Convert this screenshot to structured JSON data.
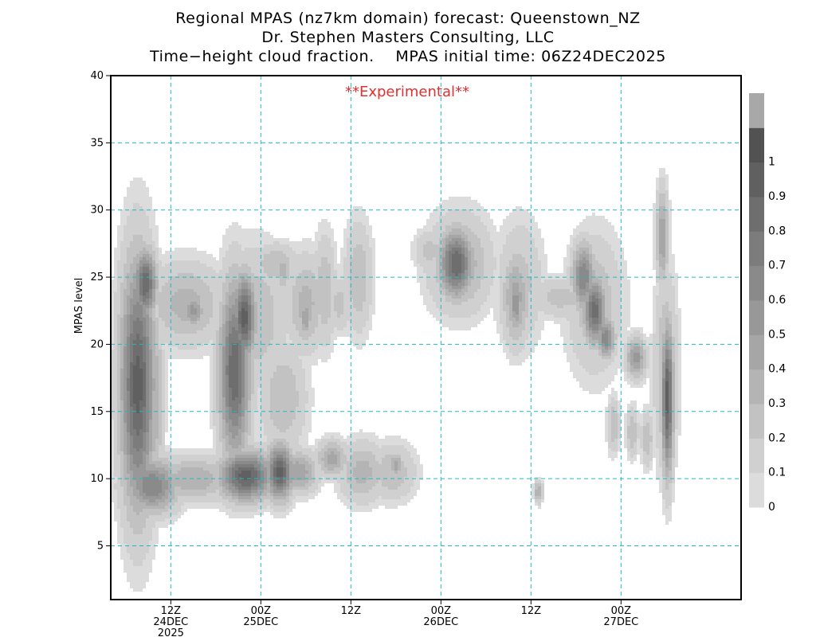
{
  "title_lines": [
    "Regional MPAS (nz7km domain) forecast: Queenstown_NZ",
    "Dr. Stephen Masters Consulting, LLC",
    "Time−height cloud fraction.    MPAS initial time: 06Z24DEC2025"
  ],
  "annotation": "**Experimental**",
  "colors": {
    "grid": "#20b8c8",
    "annotation": "#e03030",
    "frame": "#000000"
  },
  "chart_data": {
    "type": "heatmap",
    "ylabel": "MPAS level",
    "ylim": [
      1,
      40
    ],
    "yticks": [
      5,
      10,
      15,
      20,
      25,
      30,
      35,
      40
    ],
    "xlim_hours_from_init": [
      -2,
      82
    ],
    "xticks": [
      {
        "hours": 6,
        "label": "12Z",
        "sub": [
          "24DEC",
          "2025"
        ]
      },
      {
        "hours": 18,
        "label": "00Z",
        "sub": [
          "25DEC"
        ]
      },
      {
        "hours": 30,
        "label": "12Z",
        "sub": []
      },
      {
        "hours": 42,
        "label": "00Z",
        "sub": [
          "26DEC"
        ]
      },
      {
        "hours": 54,
        "label": "12Z",
        "sub": []
      },
      {
        "hours": 66,
        "label": "00Z",
        "sub": [
          "27DEC"
        ]
      }
    ],
    "colorbar": {
      "labels": [
        "0",
        "0.1",
        "0.2",
        "0.3",
        "0.4",
        "0.5",
        "0.6",
        "0.7",
        "0.8",
        "0.9",
        "1"
      ],
      "colors": [
        "#dcdcdc",
        "#d0d0d0",
        "#c2c2c2",
        "#b4b4b4",
        "#a6a6a6",
        "#989898",
        "#8a8a8a",
        "#7c7c7c",
        "#6e6e6e",
        "#606060",
        "#525252",
        "#a8a8a8"
      ]
    },
    "cloud_features": [
      {
        "name": "left-column",
        "t": 1.6,
        "z": 17.0,
        "dt": 2.3,
        "dz": 9.0,
        "max": 0.95
      },
      {
        "name": "left-column-top",
        "t": 2.6,
        "z": 24.5,
        "dt": 1.5,
        "dz": 2.5,
        "max": 0.9
      },
      {
        "name": "left-spike",
        "t": 4.0,
        "z": 16.0,
        "dt": 1.0,
        "dz": 6.0,
        "max": 0.4
      },
      {
        "name": "left-low",
        "t": 3.5,
        "z": 9.5,
        "dt": 3.5,
        "dz": 2.0,
        "max": 0.7
      },
      {
        "name": "upper-band",
        "t": 8.0,
        "z": 23.0,
        "dt": 5.0,
        "dz": 3.0,
        "max": 0.35
      },
      {
        "name": "upper-band-core",
        "t": 9.0,
        "z": 22.5,
        "dt": 1.5,
        "dz": 1.2,
        "max": 0.55
      },
      {
        "name": "low-band",
        "t": 9.0,
        "z": 10.0,
        "dt": 5.0,
        "dz": 1.6,
        "max": 0.4
      },
      {
        "name": "mid-tower",
        "t": 14.5,
        "z": 18.0,
        "dt": 2.0,
        "dz": 6.5,
        "max": 0.9
      },
      {
        "name": "mid-tower-top",
        "t": 15.8,
        "z": 22.0,
        "dt": 1.5,
        "dz": 3.2,
        "max": 0.95
      },
      {
        "name": "mid-low",
        "t": 16.0,
        "z": 10.2,
        "dt": 3.5,
        "dz": 1.8,
        "max": 0.95
      },
      {
        "name": "mid-low-right",
        "t": 20.5,
        "z": 10.5,
        "dt": 1.8,
        "dz": 2.0,
        "max": 0.95
      },
      {
        "name": "mid-low-tail",
        "t": 23.0,
        "z": 10.5,
        "dt": 2.5,
        "dz": 1.5,
        "max": 0.5
      },
      {
        "name": "mid-upper-halo",
        "t": 17.0,
        "z": 22.0,
        "dt": 4.5,
        "dz": 5.0,
        "max": 0.3
      },
      {
        "name": "halo-upper",
        "t": 20.0,
        "z": 26.0,
        "dt": 3.0,
        "dz": 1.5,
        "max": 0.3
      },
      {
        "name": "halo-mid",
        "t": 21.0,
        "z": 16.0,
        "dt": 3.0,
        "dz": 4.0,
        "max": 0.3
      },
      {
        "name": "thin-25",
        "t": 21.0,
        "z": 25.5,
        "dt": 1.0,
        "dz": 1.5,
        "max": 0.35
      },
      {
        "name": "upper-24",
        "t": 24.0,
        "z": 23.0,
        "dt": 2.5,
        "dz": 3.5,
        "max": 0.35
      },
      {
        "name": "upper-24-core",
        "t": 24.0,
        "z": 22.0,
        "dt": 0.8,
        "dz": 1.5,
        "max": 0.5
      },
      {
        "name": "upper-26",
        "t": 26.5,
        "z": 24.0,
        "dt": 1.5,
        "dz": 4.0,
        "max": 0.3
      },
      {
        "name": "upper-28",
        "t": 28.5,
        "z": 23.0,
        "dt": 1.5,
        "dz": 2.0,
        "max": 0.25
      },
      {
        "name": "upper-30",
        "t": 31.0,
        "z": 25.0,
        "dt": 1.8,
        "dz": 4.0,
        "max": 0.3
      },
      {
        "name": "low-27",
        "t": 27.5,
        "z": 11.5,
        "dt": 2.0,
        "dz": 1.3,
        "max": 0.45
      },
      {
        "name": "low-31",
        "t": 31.5,
        "z": 10.5,
        "dt": 3.0,
        "dz": 2.2,
        "max": 0.35
      },
      {
        "name": "low-35",
        "t": 35.5,
        "z": 10.5,
        "dt": 3.0,
        "dz": 2.0,
        "max": 0.3
      },
      {
        "name": "low-36-core",
        "t": 36.0,
        "z": 11.0,
        "dt": 1.0,
        "dz": 1.0,
        "max": 0.45
      },
      {
        "name": "d26-upper",
        "t": 44.0,
        "z": 26.0,
        "dt": 2.2,
        "dz": 2.5,
        "max": 0.9
      },
      {
        "name": "d26-halo",
        "t": 44.5,
        "z": 26.0,
        "dt": 4.0,
        "dz": 3.5,
        "max": 0.4
      },
      {
        "name": "d26-left",
        "t": 40.5,
        "z": 27.0,
        "dt": 2.0,
        "dz": 1.5,
        "max": 0.25
      },
      {
        "name": "mid-12z-26",
        "t": 52.0,
        "z": 23.5,
        "dt": 1.8,
        "dz": 3.5,
        "max": 0.45
      },
      {
        "name": "mid-12z-26-core",
        "t": 52.0,
        "z": 23.0,
        "dt": 0.8,
        "dz": 2.0,
        "max": 0.6
      },
      {
        "name": "mid-12z-26-halo",
        "t": 52.5,
        "z": 24.5,
        "dt": 3.0,
        "dz": 4.5,
        "max": 0.25
      },
      {
        "name": "right-upper-halo",
        "t": 58.0,
        "z": 23.5,
        "dt": 4.0,
        "dz": 1.5,
        "max": 0.25
      },
      {
        "name": "low-55",
        "t": 55.0,
        "z": 9.0,
        "dt": 0.6,
        "dz": 0.8,
        "max": 0.4
      },
      {
        "name": "diag-1",
        "t": 61.0,
        "z": 25.0,
        "dt": 1.5,
        "dz": 2.5,
        "max": 0.7
      },
      {
        "name": "diag-2",
        "t": 62.5,
        "z": 22.5,
        "dt": 1.5,
        "dz": 2.5,
        "max": 0.85
      },
      {
        "name": "diag-3",
        "t": 64.0,
        "z": 20.5,
        "dt": 1.2,
        "dz": 1.5,
        "max": 0.7
      },
      {
        "name": "diag-halo",
        "t": 62.5,
        "z": 23.0,
        "dt": 3.5,
        "dz": 5.0,
        "max": 0.3
      },
      {
        "name": "cell-68",
        "t": 68.0,
        "z": 19.0,
        "dt": 1.3,
        "dz": 1.5,
        "max": 0.55
      },
      {
        "name": "low-65",
        "t": 65.0,
        "z": 14.0,
        "dt": 0.8,
        "dz": 2.0,
        "max": 0.3
      },
      {
        "name": "low-67",
        "t": 67.5,
        "z": 13.5,
        "dt": 0.8,
        "dz": 1.8,
        "max": 0.3
      },
      {
        "name": "low-69",
        "t": 69.5,
        "z": 13.0,
        "dt": 0.8,
        "dz": 2.0,
        "max": 0.3
      },
      {
        "name": "right-top-spike",
        "t": 71.5,
        "z": 28.0,
        "dt": 0.8,
        "dz": 3.5,
        "max": 0.5
      },
      {
        "name": "right-edge-column",
        "t": 72.2,
        "z": 16.0,
        "dt": 0.8,
        "dz": 5.5,
        "max": 0.95
      },
      {
        "name": "right-edge-halo",
        "t": 72.0,
        "z": 18.0,
        "dt": 1.5,
        "dz": 7.0,
        "max": 0.35
      }
    ]
  }
}
